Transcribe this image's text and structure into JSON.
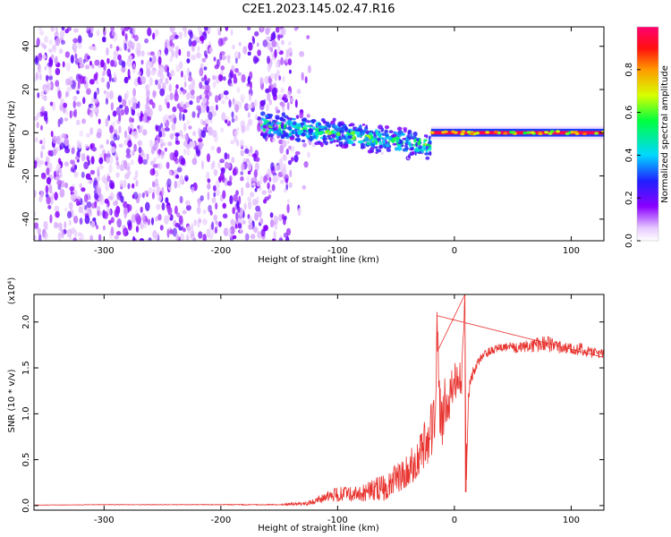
{
  "title": "C2E1.2023.145.02.47.R16",
  "colorbar": {
    "label": "Normalized spectral amplitude",
    "ticks": [
      "0.0",
      "0.2",
      "0.4",
      "0.6",
      "0.8"
    ],
    "tick_values": [
      0.0,
      0.2,
      0.4,
      0.6,
      0.8
    ]
  },
  "chart_data": [
    {
      "type": "heatmap",
      "xlabel": "Height of straight line (km)",
      "ylabel": "Frequency (Hz)",
      "xlim": [
        -360,
        128
      ],
      "ylim": [
        -50,
        49
      ],
      "x_ticks": [
        -300,
        -200,
        -100,
        0,
        100
      ],
      "x_tick_labels": [
        "-300",
        "-200",
        "-100",
        "0",
        "100"
      ],
      "y_ticks": [
        -40,
        -20,
        0,
        20,
        40
      ],
      "y_tick_labels": [
        "-40",
        "-20",
        "0",
        "20",
        "40"
      ],
      "color_scale": "rainbow (white→purple→blue→cyan→green→yellow→red→pink)",
      "value_range": [
        0,
        1
      ],
      "regions": [
        {
          "x_range": [
            -360,
            -140
          ],
          "freq_range": [
            -50,
            49
          ],
          "amplitude": "0.0–0.25 (diffuse noise)"
        },
        {
          "x_range": [
            -165,
            -20
          ],
          "freq_center": [
            4,
            -6
          ],
          "freq_halfwidth": 5,
          "amplitude": "0.2–0.7 (scattered spectral spots)"
        },
        {
          "x_range": [
            -20,
            128
          ],
          "freq_center": 0,
          "freq_halfwidth": 1,
          "amplitude": "0.9–1.0 (narrow carrier line)"
        }
      ]
    },
    {
      "type": "line",
      "xlabel": "Height of straight line (km)",
      "ylabel": "SNR (10 * v/v)",
      "y_multiplier": "(x10⁴)",
      "xlim": [
        -360,
        128
      ],
      "ylim": [
        -0.05,
        2.3
      ],
      "x_ticks": [
        -300,
        -200,
        -100,
        0,
        100
      ],
      "x_tick_labels": [
        "-300",
        "-200",
        "-100",
        "0",
        "100"
      ],
      "y_ticks": [
        0.0,
        0.5,
        1.0,
        1.5,
        2.0
      ],
      "y_tick_labels": [
        "0.0",
        "0.5",
        "1.0",
        "1.5",
        "2.0"
      ],
      "series": [
        {
          "color": "#e8332f",
          "x": [
            -360,
            -300,
            -200,
            -150,
            -125,
            -110,
            -100,
            -80,
            -60,
            -50,
            -40,
            -30,
            -20,
            -16,
            -15,
            -12,
            -8,
            -4,
            0,
            4,
            6,
            9,
            10,
            12,
            14,
            16,
            18,
            20,
            22,
            25,
            30,
            35,
            40,
            50,
            60,
            70,
            80,
            90,
            100,
            110,
            120,
            128
          ],
          "y": [
            0.005,
            0.01,
            0.01,
            0.01,
            0.02,
            0.1,
            0.12,
            0.13,
            0.2,
            0.3,
            0.4,
            0.55,
            0.8,
            1.0,
            2.07,
            0.9,
            1.1,
            1.2,
            1.35,
            1.4,
            1.3,
            2.3,
            0.15,
            1.2,
            1.35,
            1.45,
            1.5,
            1.55,
            1.6,
            1.65,
            1.68,
            1.7,
            1.72,
            1.72,
            1.73,
            1.75,
            1.76,
            1.74,
            1.72,
            1.7,
            1.66,
            1.66
          ],
          "noise_amplitude": [
            0.002,
            0.003,
            0.004,
            0.006,
            0.03,
            0.06,
            0.08,
            0.09,
            0.15,
            0.18,
            0.2,
            0.25,
            0.3,
            0.3,
            0.1,
            0.35,
            0.3,
            0.25,
            0.2,
            0.2,
            0.2,
            0.05,
            0.05,
            0.1,
            0.08,
            0.07,
            0.06,
            0.05,
            0.05,
            0.05,
            0.05,
            0.05,
            0.05,
            0.06,
            0.07,
            0.08,
            0.09,
            0.08,
            0.07,
            0.07,
            0.06,
            0.05
          ]
        }
      ]
    }
  ]
}
